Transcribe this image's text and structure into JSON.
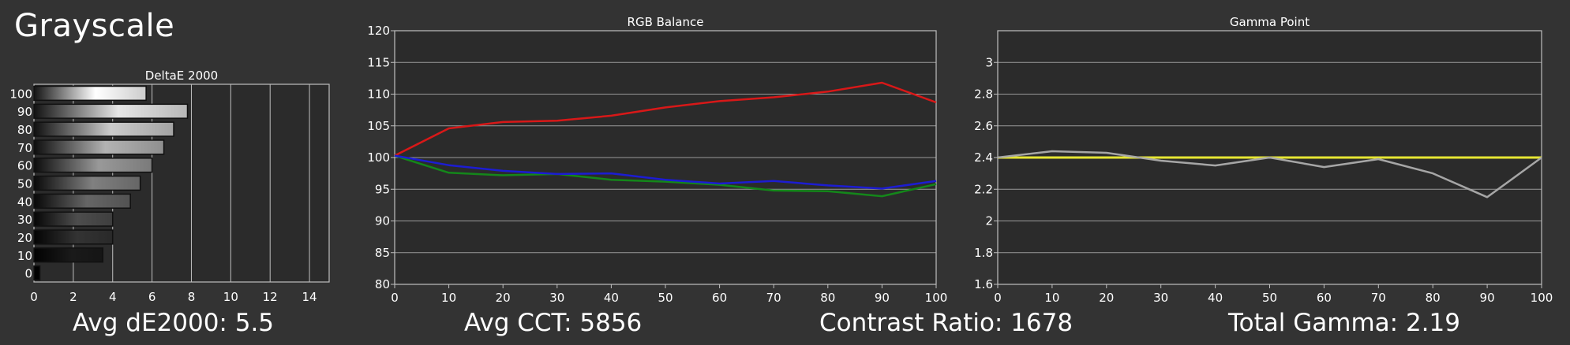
{
  "page": {
    "title": "Grayscale"
  },
  "stats": {
    "avg_de": "Avg dE2000: 5.5",
    "avg_cct": "Avg CCT: 5856",
    "contrast": "Contrast Ratio: 1678",
    "gamma": "Total Gamma: 2.19"
  },
  "colors": {
    "background": "#333333",
    "plot_bg": "#2b2b2b",
    "red": "#d81818",
    "green": "#14871a",
    "blue": "#1c1cd2",
    "gamma_target": "#e6e633",
    "gamma_measured": "#a6a6a6"
  },
  "chart_data": [
    {
      "id": "deltae",
      "type": "bar",
      "orientation": "horizontal",
      "title": "DeltaE 2000",
      "categories": [
        "100",
        "90",
        "80",
        "70",
        "60",
        "50",
        "40",
        "30",
        "20",
        "10",
        "0"
      ],
      "values": [
        5.7,
        7.8,
        7.1,
        6.6,
        6.0,
        5.4,
        4.9,
        4.0,
        4.0,
        3.5,
        0.3
      ],
      "xlim": [
        0,
        15
      ],
      "xticks": [
        0,
        2,
        4,
        6,
        8,
        10,
        12,
        14
      ],
      "grid": true
    },
    {
      "id": "rgb",
      "type": "line",
      "title": "RGB Balance",
      "x": [
        0,
        10,
        20,
        30,
        40,
        50,
        60,
        70,
        80,
        90,
        100
      ],
      "series": [
        {
          "color": "red",
          "values": [
            100.3,
            104.6,
            105.6,
            105.8,
            106.6,
            107.9,
            108.9,
            109.5,
            110.4,
            111.8,
            108.7
          ]
        },
        {
          "color": "green",
          "values": [
            100.3,
            97.6,
            97.2,
            97.4,
            96.5,
            96.2,
            95.7,
            94.8,
            94.7,
            93.9,
            95.8
          ]
        },
        {
          "color": "blue",
          "values": [
            100.3,
            98.8,
            97.9,
            97.4,
            97.5,
            96.5,
            95.9,
            96.3,
            95.6,
            95.1,
            96.3
          ]
        }
      ],
      "xlim": [
        0,
        100
      ],
      "ylim": [
        80,
        120
      ],
      "xticks": [
        0,
        10,
        20,
        30,
        40,
        50,
        60,
        70,
        80,
        90,
        100
      ],
      "yticks": [
        80,
        85,
        90,
        95,
        100,
        105,
        110,
        115,
        120
      ],
      "grid": true
    },
    {
      "id": "gamma",
      "type": "line",
      "title": "Gamma Point",
      "x": [
        0,
        10,
        20,
        30,
        40,
        50,
        60,
        70,
        80,
        90,
        100
      ],
      "series": [
        {
          "color": "gamma_target",
          "values": [
            2.4,
            2.4,
            2.4,
            2.4,
            2.4,
            2.4,
            2.4,
            2.4,
            2.4,
            2.4,
            2.4
          ]
        },
        {
          "color": "gamma_measured",
          "values": [
            2.4,
            2.44,
            2.43,
            2.38,
            2.35,
            2.4,
            2.34,
            2.39,
            2.3,
            2.15,
            2.4
          ]
        }
      ],
      "xlim": [
        0,
        100
      ],
      "ylim": [
        1.6,
        3.2
      ],
      "xticks": [
        0,
        10,
        20,
        30,
        40,
        50,
        60,
        70,
        80,
        90,
        100
      ],
      "yticks": [
        1.6,
        1.8,
        2,
        2.2,
        2.4,
        2.6,
        2.8,
        3
      ],
      "grid": true
    }
  ]
}
